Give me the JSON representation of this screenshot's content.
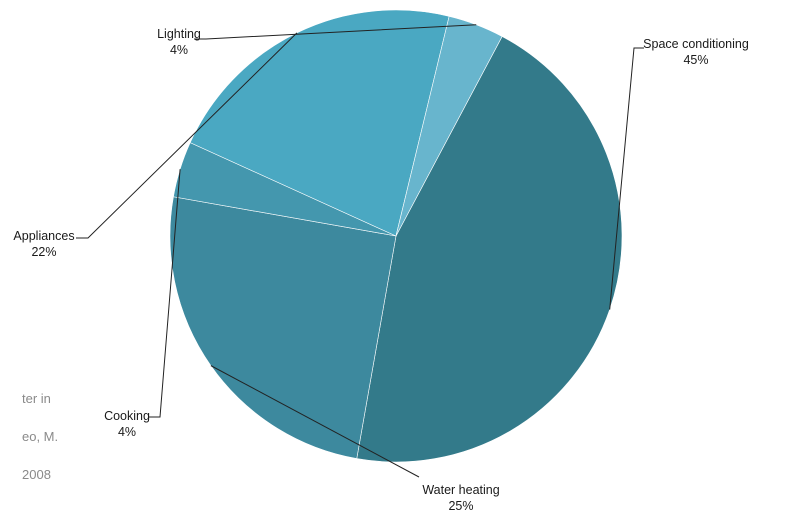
{
  "background_text": [
    "ter in",
    "eo, M.",
    "2008"
  ],
  "chart_data": {
    "type": "pie",
    "slices": [
      {
        "label": "Space conditioning",
        "percent_label": "45%",
        "value": 45,
        "color": "#337a8a"
      },
      {
        "label": "Water heating",
        "percent_label": "25%",
        "value": 25,
        "color": "#3d899e"
      },
      {
        "label": "Cooking",
        "percent_label": "4%",
        "value": 4,
        "color": "#4497ae"
      },
      {
        "label": "Appliances",
        "percent_label": "22%",
        "value": 22,
        "color": "#4aa8c2"
      },
      {
        "label": "Lighting",
        "percent_label": "4%",
        "value": 4,
        "color": "#68b5cd"
      }
    ],
    "start_angle_deg": -62,
    "direction": "clockwise",
    "legend": "none",
    "label_style": "leader-lines"
  }
}
